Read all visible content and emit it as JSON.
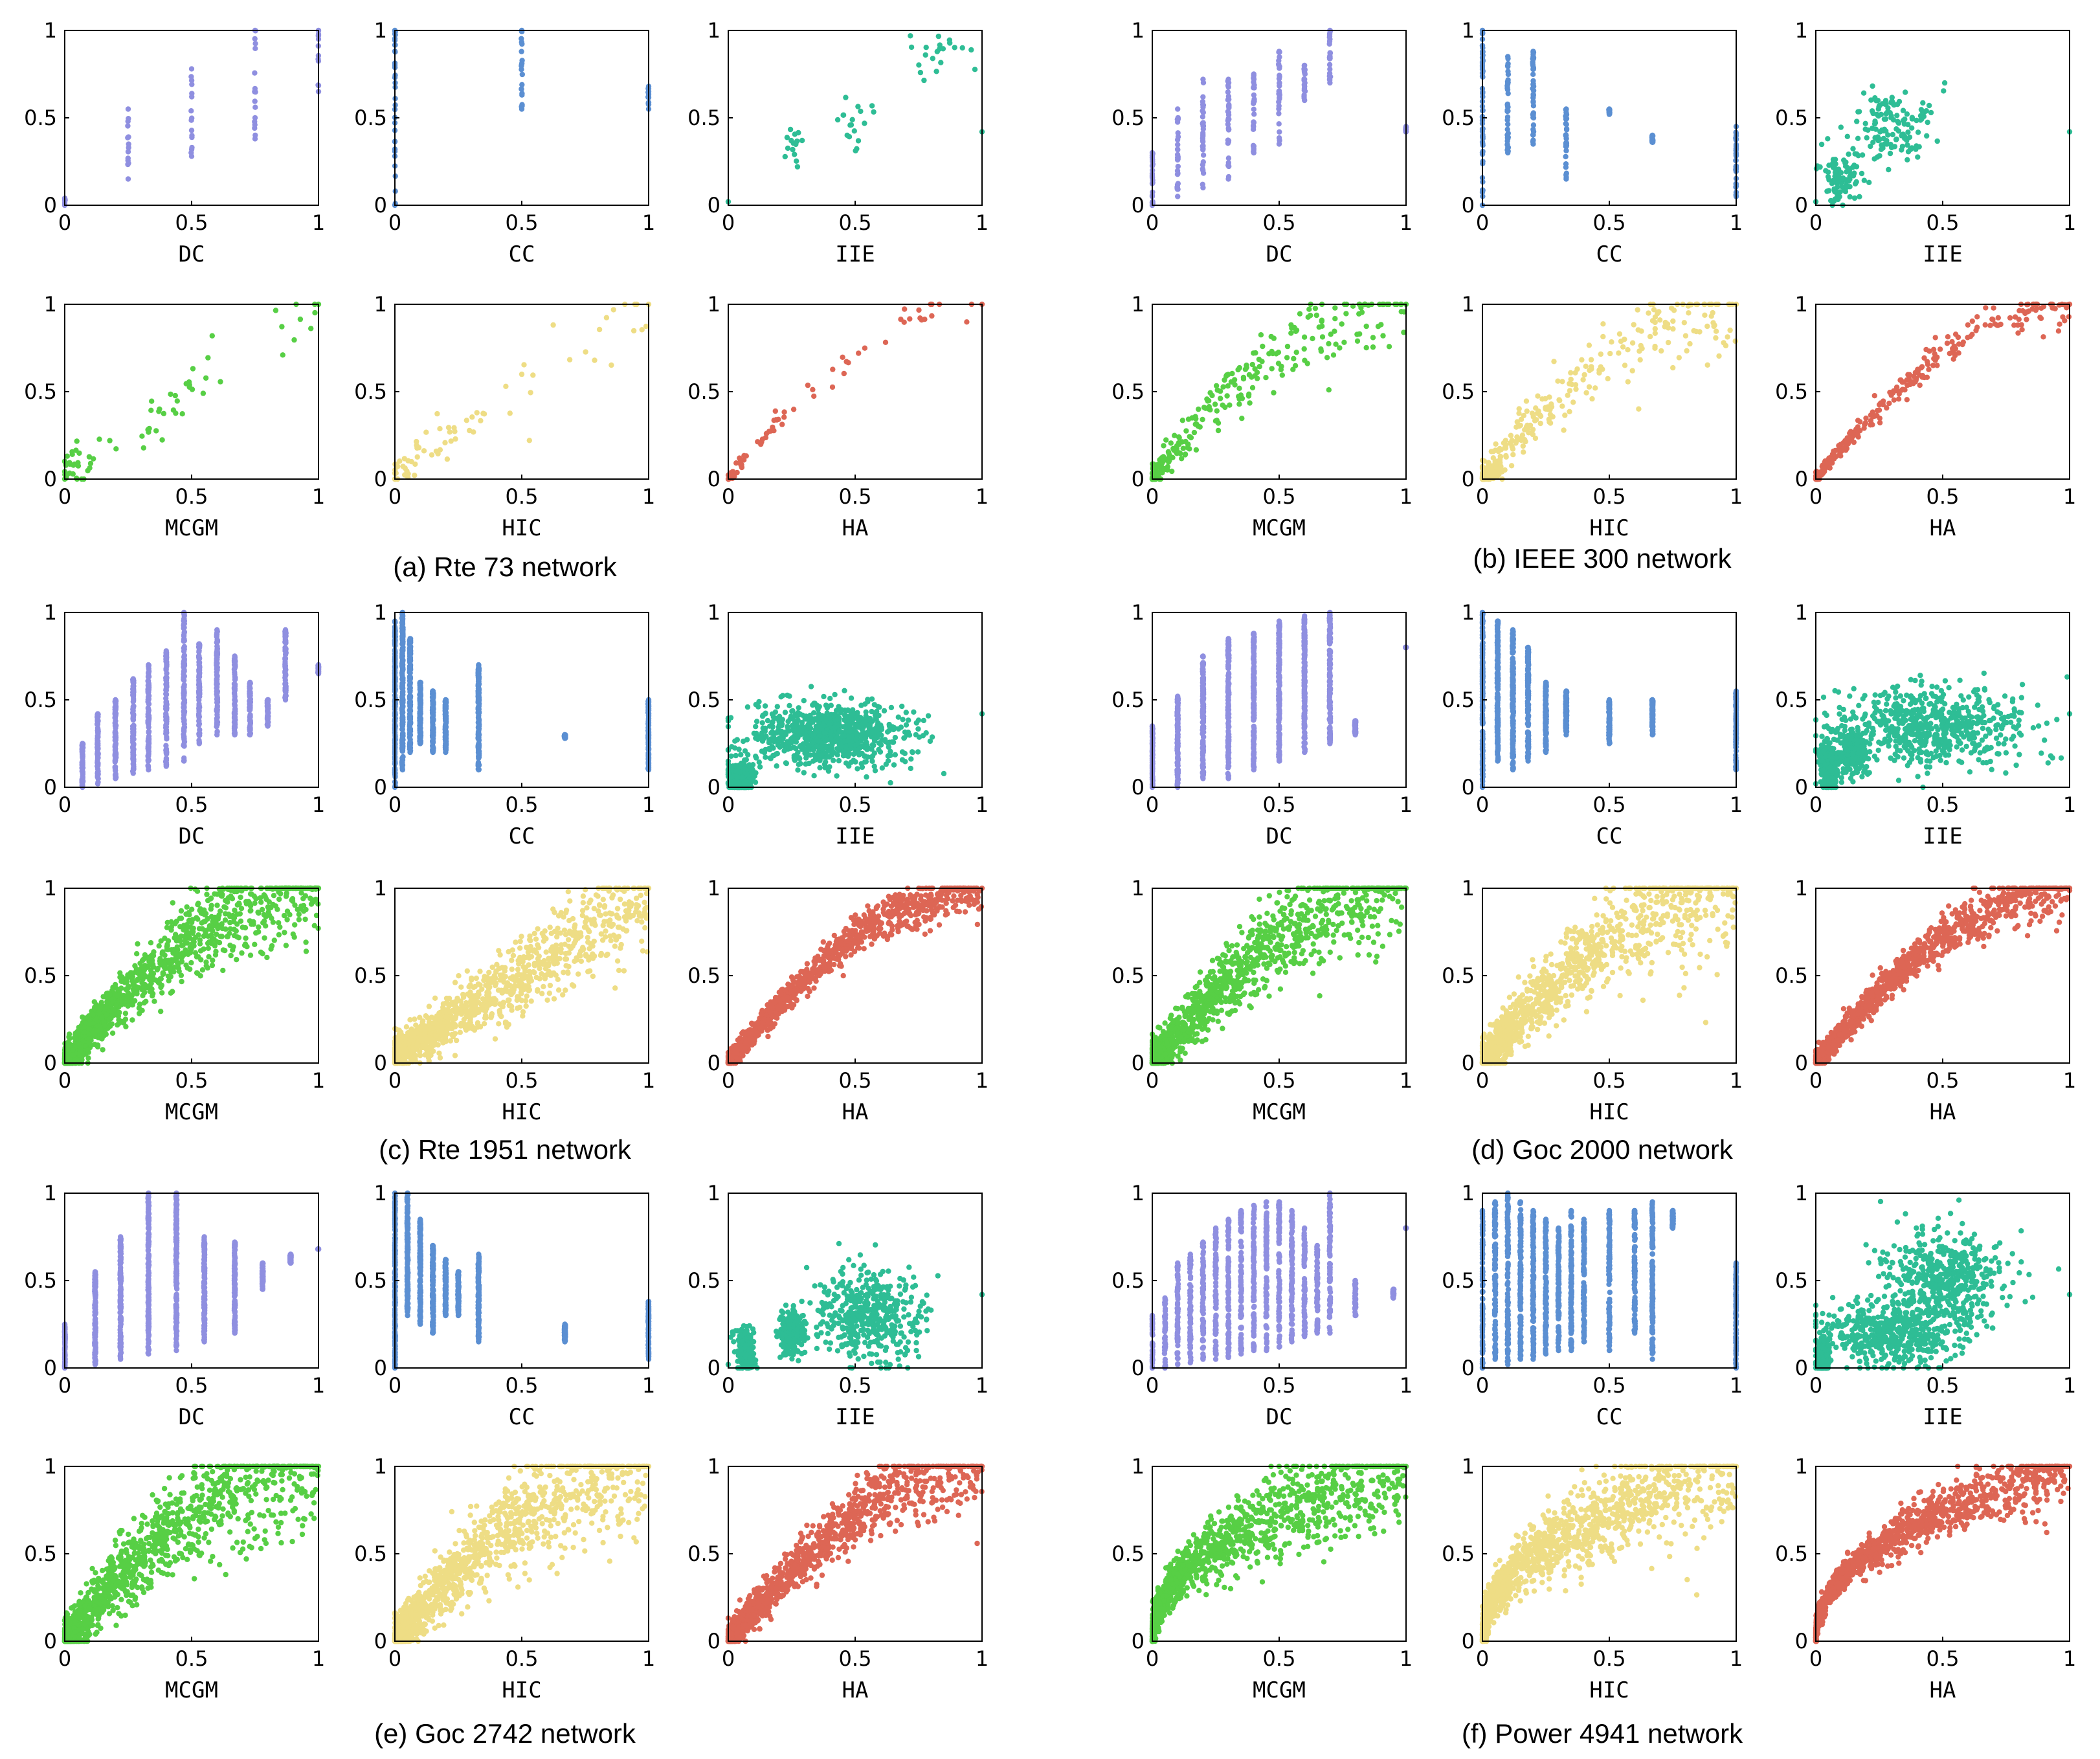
{
  "figure": {
    "captions": [
      "(a) Rte 73 network",
      "(b) IEEE 300 network",
      "(c) Rte 1951 network",
      "(d) Goc 2000 network",
      "(e) Goc 2742 network",
      "(f) Power 4941 network"
    ],
    "tick_labels": [
      "0",
      "0.5",
      "1"
    ],
    "method_colors": {
      "DC": "#8f8fe0",
      "CC": "#5b8fd2",
      "IIE": "#2ebd95",
      "MCGM": "#57cf45",
      "HIC": "#eedd85",
      "HA": "#dd6655"
    }
  },
  "chart_data": [
    {
      "network": "Rte 73",
      "caption": "(a) Rte 73 network",
      "type": "scatter",
      "points": 73,
      "xlim": [
        0,
        1
      ],
      "ylim": [
        0,
        1
      ],
      "ylabel": "",
      "subplots": [
        {
          "xlabel": "DC",
          "pattern": "columns",
          "cols": [
            0,
            0.25,
            0.5,
            0.75,
            1
          ],
          "ymin": [
            0,
            0.15,
            0.28,
            0.38,
            0.65
          ],
          "ymax": [
            0.04,
            0.55,
            0.78,
            1.0,
            1.0
          ]
        },
        {
          "xlabel": "CC",
          "pattern": "columns",
          "cols": [
            0,
            0.5,
            1
          ],
          "ymin": [
            0,
            0.55,
            0.55
          ],
          "ymax": [
            1.0,
            1.0,
            0.68
          ]
        },
        {
          "xlabel": "IIE",
          "pattern": "cloud",
          "clusters": [
            [
              0.27,
              0.35,
              0.04,
              0.12
            ],
            [
              0.5,
              0.45,
              0.08,
              0.12
            ],
            [
              0.82,
              0.85,
              0.12,
              0.12
            ]
          ]
        },
        {
          "xlabel": "MCGM",
          "pattern": "trend",
          "curve": "linear",
          "spread": 0.12
        },
        {
          "xlabel": "HIC",
          "pattern": "trend",
          "curve": "linear",
          "spread": 0.1
        },
        {
          "xlabel": "HA",
          "pattern": "trend",
          "curve": "concave",
          "spread": 0.04
        }
      ]
    },
    {
      "network": "IEEE 300",
      "caption": "(b) IEEE 300 network",
      "type": "scatter",
      "points": 300,
      "xlim": [
        0,
        1
      ],
      "ylim": [
        0,
        1
      ],
      "ylabel": "",
      "subplots": [
        {
          "xlabel": "DC",
          "pattern": "columns",
          "cols": [
            0,
            0.1,
            0.2,
            0.3,
            0.4,
            0.5,
            0.6,
            0.7,
            1
          ],
          "ymin": [
            0,
            0.05,
            0.1,
            0.15,
            0.3,
            0.35,
            0.6,
            0.7,
            0.42
          ],
          "ymax": [
            0.3,
            0.55,
            0.72,
            0.72,
            0.75,
            0.88,
            0.8,
            1.0,
            0.45
          ]
        },
        {
          "xlabel": "CC",
          "pattern": "columns",
          "cols": [
            0,
            0.1,
            0.2,
            0.33,
            0.5,
            0.67,
            1
          ],
          "ymin": [
            0,
            0.3,
            0.35,
            0.15,
            0.52,
            0.36,
            0.05
          ],
          "ymax": [
            1.0,
            0.85,
            0.88,
            0.55,
            0.55,
            0.4,
            0.45
          ]
        },
        {
          "xlabel": "IIE",
          "pattern": "cloud",
          "clusters": [
            [
              0.1,
              0.15,
              0.06,
              0.12
            ],
            [
              0.3,
              0.45,
              0.14,
              0.18
            ]
          ]
        },
        {
          "xlabel": "MCGM",
          "pattern": "trend",
          "curve": "concave",
          "spread": 0.12
        },
        {
          "xlabel": "HIC",
          "pattern": "trend",
          "curve": "concave",
          "spread": 0.12
        },
        {
          "xlabel": "HA",
          "pattern": "trend",
          "curve": "concave",
          "spread": 0.05
        }
      ]
    },
    {
      "network": "Rte 1951",
      "caption": "(c) Rte 1951 network",
      "type": "scatter",
      "points": 1951,
      "xlim": [
        0,
        1
      ],
      "ylim": [
        0,
        1
      ],
      "ylabel": "",
      "subplots": [
        {
          "xlabel": "DC",
          "pattern": "columns",
          "cols": [
            0.07,
            0.13,
            0.2,
            0.27,
            0.33,
            0.4,
            0.47,
            0.53,
            0.6,
            0.67,
            0.73,
            0.8,
            0.87,
            1
          ],
          "ymin": [
            0,
            0.02,
            0.05,
            0.08,
            0.1,
            0.12,
            0.15,
            0.25,
            0.3,
            0.3,
            0.3,
            0.35,
            0.5,
            0.65
          ],
          "ymax": [
            0.25,
            0.42,
            0.5,
            0.62,
            0.7,
            0.78,
            1.0,
            0.82,
            0.9,
            0.75,
            0.6,
            0.5,
            0.9,
            0.7
          ]
        },
        {
          "xlabel": "CC",
          "pattern": "columns",
          "cols": [
            0,
            0.03,
            0.06,
            0.1,
            0.15,
            0.2,
            0.33,
            0.67,
            1
          ],
          "ymin": [
            0,
            0.1,
            0.2,
            0.25,
            0.2,
            0.2,
            0.1,
            0.28,
            0.1
          ],
          "ymax": [
            0.95,
            1.0,
            0.85,
            0.6,
            0.55,
            0.5,
            0.7,
            0.3,
            0.5
          ]
        },
        {
          "xlabel": "IIE",
          "pattern": "cloud",
          "clusters": [
            [
              0.05,
              0.05,
              0.04,
              0.08
            ],
            [
              0.4,
              0.3,
              0.25,
              0.15
            ]
          ]
        },
        {
          "xlabel": "MCGM",
          "pattern": "trend",
          "curve": "concave",
          "spread": 0.12
        },
        {
          "xlabel": "HIC",
          "pattern": "trend",
          "curve": "linear",
          "spread": 0.12
        },
        {
          "xlabel": "HA",
          "pattern": "trend",
          "curve": "concave",
          "spread": 0.06
        }
      ]
    },
    {
      "network": "Goc 2000",
      "caption": "(d) Goc 2000 network",
      "type": "scatter",
      "points": 2000,
      "xlim": [
        0,
        1
      ],
      "ylim": [
        0,
        1
      ],
      "ylabel": "",
      "subplots": [
        {
          "xlabel": "DC",
          "pattern": "columns",
          "cols": [
            0,
            0.1,
            0.2,
            0.3,
            0.4,
            0.5,
            0.6,
            0.7,
            0.8,
            1
          ],
          "ymin": [
            0,
            0,
            0.05,
            0.05,
            0.1,
            0.15,
            0.2,
            0.25,
            0.3,
            0.8
          ],
          "ymax": [
            0.35,
            0.52,
            0.75,
            0.85,
            0.88,
            0.95,
            0.98,
            1.0,
            0.38,
            0.8
          ]
        },
        {
          "xlabel": "CC",
          "pattern": "columns",
          "cols": [
            0,
            0.06,
            0.12,
            0.18,
            0.25,
            0.33,
            0.5,
            0.67,
            1
          ],
          "ymin": [
            0,
            0.15,
            0.1,
            0.15,
            0.2,
            0.3,
            0.25,
            0.3,
            0.1
          ],
          "ymax": [
            1.0,
            0.95,
            0.9,
            0.8,
            0.6,
            0.55,
            0.5,
            0.5,
            0.55
          ]
        },
        {
          "xlabel": "IIE",
          "pattern": "cloud",
          "clusters": [
            [
              0.05,
              0.12,
              0.03,
              0.12
            ],
            [
              0.15,
              0.2,
              0.04,
              0.1
            ],
            [
              0.45,
              0.35,
              0.3,
              0.2
            ]
          ]
        },
        {
          "xlabel": "MCGM",
          "pattern": "trend",
          "curve": "concave",
          "spread": 0.15
        },
        {
          "xlabel": "HIC",
          "pattern": "trend",
          "curve": "concave",
          "spread": 0.15
        },
        {
          "xlabel": "HA",
          "pattern": "trend",
          "curve": "concave",
          "spread": 0.07
        }
      ]
    },
    {
      "network": "Goc 2742",
      "caption": "(e) Goc 2742 network",
      "type": "scatter",
      "points": 2742,
      "xlim": [
        0,
        1
      ],
      "ylim": [
        0,
        1
      ],
      "ylabel": "",
      "subplots": [
        {
          "xlabel": "DC",
          "pattern": "columns",
          "cols": [
            0,
            0.12,
            0.22,
            0.33,
            0.44,
            0.55,
            0.67,
            0.78,
            0.89,
            1
          ],
          "ymin": [
            0,
            0.02,
            0.05,
            0.08,
            0.1,
            0.15,
            0.2,
            0.45,
            0.6,
            0.68
          ],
          "ymax": [
            0.25,
            0.55,
            0.75,
            1.0,
            1.0,
            0.75,
            0.72,
            0.6,
            0.65,
            0.68
          ]
        },
        {
          "xlabel": "CC",
          "pattern": "columns",
          "cols": [
            0,
            0.05,
            0.1,
            0.15,
            0.2,
            0.25,
            0.33,
            0.67,
            1
          ],
          "ymin": [
            0,
            0.3,
            0.25,
            0.2,
            0.3,
            0.3,
            0.15,
            0.15,
            0.05
          ],
          "ymax": [
            1.0,
            1.0,
            0.85,
            0.7,
            0.62,
            0.55,
            0.65,
            0.25,
            0.38
          ]
        },
        {
          "xlabel": "IIE",
          "pattern": "cloud",
          "clusters": [
            [
              0.07,
              0.1,
              0.03,
              0.1
            ],
            [
              0.25,
              0.2,
              0.04,
              0.1
            ],
            [
              0.55,
              0.3,
              0.17,
              0.22
            ]
          ]
        },
        {
          "xlabel": "MCGM",
          "pattern": "trend",
          "curve": "concave",
          "spread": 0.16
        },
        {
          "xlabel": "HIC",
          "pattern": "trend",
          "curve": "concave",
          "spread": 0.16
        },
        {
          "xlabel": "HA",
          "pattern": "trend",
          "curve": "concave",
          "spread": 0.1
        }
      ]
    },
    {
      "network": "Power 4941",
      "caption": "(f) Power 4941 network",
      "type": "scatter",
      "points": 4941,
      "xlim": [
        0,
        1
      ],
      "ylim": [
        0,
        1
      ],
      "ylabel": "",
      "subplots": [
        {
          "xlabel": "DC",
          "pattern": "columns",
          "cols": [
            0,
            0.05,
            0.1,
            0.15,
            0.2,
            0.25,
            0.3,
            0.35,
            0.4,
            0.45,
            0.5,
            0.55,
            0.6,
            0.65,
            0.7,
            0.8,
            0.95,
            1
          ],
          "ymin": [
            0,
            0,
            0.02,
            0.03,
            0.05,
            0.05,
            0.06,
            0.08,
            0.1,
            0.1,
            0.12,
            0.15,
            0.18,
            0.2,
            0.2,
            0.3,
            0.4,
            0.8
          ],
          "ymax": [
            0.3,
            0.4,
            0.6,
            0.65,
            0.72,
            0.8,
            0.85,
            0.9,
            0.93,
            0.95,
            0.95,
            0.9,
            0.8,
            0.7,
            1.0,
            0.5,
            0.45,
            0.8
          ]
        },
        {
          "xlabel": "CC",
          "pattern": "columns",
          "cols": [
            0,
            0.05,
            0.1,
            0.15,
            0.2,
            0.25,
            0.3,
            0.35,
            0.4,
            0.5,
            0.6,
            0.67,
            0.75,
            1
          ],
          "ymin": [
            0,
            0.05,
            0.02,
            0.05,
            0.05,
            0.08,
            0.1,
            0.1,
            0.15,
            0.1,
            0.2,
            0.05,
            0.8,
            0
          ],
          "ymax": [
            0.9,
            0.95,
            1.0,
            0.95,
            0.9,
            0.85,
            0.8,
            0.9,
            0.85,
            0.9,
            0.9,
            0.95,
            0.9,
            0.6
          ]
        },
        {
          "xlabel": "IIE",
          "pattern": "cloud",
          "clusters": [
            [
              0.03,
              0.05,
              0.02,
              0.1
            ],
            [
              0.3,
              0.2,
              0.22,
              0.15
            ],
            [
              0.5,
              0.5,
              0.2,
              0.25
            ]
          ]
        },
        {
          "xlabel": "MCGM",
          "pattern": "trend",
          "curve": "sqrt",
          "spread": 0.14
        },
        {
          "xlabel": "HIC",
          "pattern": "trend",
          "curve": "sqrt",
          "spread": 0.14
        },
        {
          "xlabel": "HA",
          "pattern": "trend",
          "curve": "sqrt",
          "spread": 0.08
        }
      ]
    }
  ]
}
